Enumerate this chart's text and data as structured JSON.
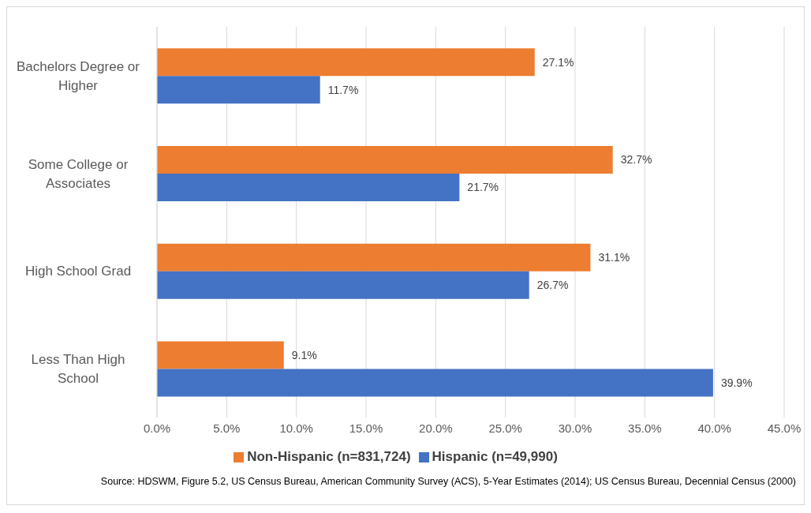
{
  "chart_data": {
    "type": "bar",
    "orientation": "horizontal",
    "categories": [
      "Bachelors Degree or Higher",
      "Some College or Associates",
      "High School Grad",
      "Less Than High School"
    ],
    "series": [
      {
        "name": "Non-Hispanic (n=831,724)",
        "color": "#ed7d31",
        "values": [
          27.1,
          32.7,
          31.1,
          9.1
        ],
        "value_labels": [
          "27.1%",
          "32.7%",
          "31.1%",
          "9.1%"
        ]
      },
      {
        "name": "Hispanic (n=49,990)",
        "color": "#4472c4",
        "values": [
          11.7,
          21.7,
          26.7,
          39.9
        ],
        "value_labels": [
          "11.7%",
          "21.7%",
          "26.7%",
          "39.9%"
        ]
      }
    ],
    "xlim": [
      0,
      45
    ],
    "xticks": [
      {
        "value": 0,
        "label": "0.0%"
      },
      {
        "value": 5,
        "label": "5.0%"
      },
      {
        "value": 10,
        "label": "10.0%"
      },
      {
        "value": 15,
        "label": "15.0%"
      },
      {
        "value": 20,
        "label": "20.0%"
      },
      {
        "value": 25,
        "label": "25.0%"
      },
      {
        "value": 30,
        "label": "30.0%"
      },
      {
        "value": 35,
        "label": "35.0%"
      },
      {
        "value": 40,
        "label": "40.0%"
      },
      {
        "value": 45,
        "label": "45.0%"
      }
    ],
    "grid": "x",
    "legend": "bottom",
    "annotations": [
      "Source: HDSWM, Figure 5.2, US Census Bureau, American Community Survey (ACS), 5-Year Estimates (2014); US Census Bureau, Decennial Census (2000)"
    ]
  }
}
